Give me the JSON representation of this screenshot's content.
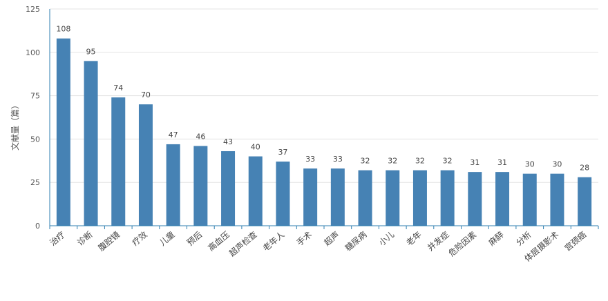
{
  "chart_data": {
    "type": "bar",
    "ylabel": "文献量（篇）",
    "ylim": [
      0,
      125
    ],
    "yticks": [
      0,
      25,
      50,
      75,
      100,
      125
    ],
    "grid": true,
    "bar_color": "#4682b4",
    "axis_color": "#2f7fb0",
    "categories": [
      "治疗",
      "诊断",
      "腹腔镜",
      "疗效",
      "儿童",
      "预后",
      "高血压",
      "超声检查",
      "老年人",
      "手术",
      "超声",
      "糖尿病",
      "小儿",
      "老年",
      "并发症",
      "危险因素",
      "麻醉",
      "分析",
      "体层摄影术",
      "宫颈癌"
    ],
    "values": [
      108,
      95,
      74,
      70,
      47,
      46,
      43,
      40,
      37,
      33,
      33,
      32,
      32,
      32,
      32,
      31,
      31,
      30,
      30,
      28
    ]
  }
}
